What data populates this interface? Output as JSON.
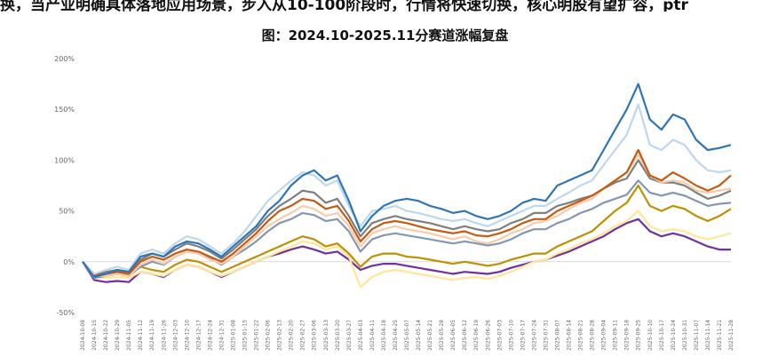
{
  "header": {
    "intro_text": "换，当产业明确具体落地应用场景，步入从10-100阶段时，行情将快速切换，核心明股有望扩容，ptr"
  },
  "chart_data": {
    "type": "line",
    "title": "图：2024.10-2025.11分赛道涨幅复盘",
    "xlabel": "",
    "ylabel": "",
    "ylim": [
      -50,
      200
    ],
    "yticks": [
      -50,
      0,
      50,
      100,
      150,
      200
    ],
    "ytick_labels": [
      "-50%",
      "0%",
      "50%",
      "100%",
      "150%",
      "200%"
    ],
    "grid": false,
    "legend": "bottom",
    "x": [
      "2024-10-08",
      "2024-10-15",
      "2024-10-22",
      "2024-10-29",
      "2024-11-05",
      "2024-11-12",
      "2024-11-19",
      "2024-11-26",
      "2024-12-03",
      "2024-12-10",
      "2024-12-17",
      "2024-12-24",
      "2024-12-31",
      "2025-01-08",
      "2025-01-15",
      "2025-01-22",
      "2025-02-06",
      "2025-02-13",
      "2025-02-20",
      "2025-02-27",
      "2025-03-06",
      "2025-03-13",
      "2025-03-20",
      "2025-03-27",
      "2025-04-03",
      "2025-04-11",
      "2025-04-18",
      "2025-04-25",
      "2025-05-07",
      "2025-05-14",
      "2025-05-21",
      "2025-05-28",
      "2025-06-05",
      "2025-06-12",
      "2025-06-19",
      "2025-06-26",
      "2025-07-03",
      "2025-07-10",
      "2025-07-17",
      "2025-07-24",
      "2025-07-31",
      "2025-08-07",
      "2025-08-14",
      "2025-08-21",
      "2025-08-28",
      "2025-09-04",
      "2025-09-11",
      "2025-09-18",
      "2025-09-25",
      "2025-10-10",
      "2025-10-17",
      "2025-10-24",
      "2025-10-31",
      "2025-11-07",
      "2025-11-14",
      "2025-11-21",
      "2025-11-28"
    ],
    "series": [
      {
        "color": "#2e75b6",
        "values": [
          0,
          -15,
          -12,
          -8,
          -10,
          5,
          8,
          5,
          15,
          20,
          18,
          12,
          5,
          15,
          25,
          35,
          50,
          60,
          75,
          85,
          90,
          80,
          85,
          60,
          30,
          45,
          55,
          60,
          62,
          60,
          55,
          52,
          48,
          50,
          45,
          42,
          45,
          50,
          58,
          62,
          60,
          75,
          80,
          85,
          90,
          110,
          130,
          150,
          175,
          140,
          130,
          145,
          140,
          120,
          110,
          112,
          115
        ]
      },
      {
        "color": "#bdd7ee",
        "values": [
          0,
          -12,
          -8,
          -5,
          -8,
          8,
          12,
          8,
          18,
          25,
          22,
          15,
          8,
          18,
          30,
          45,
          60,
          70,
          80,
          88,
          85,
          75,
          80,
          55,
          35,
          50,
          52,
          55,
          50,
          48,
          45,
          42,
          40,
          42,
          38,
          35,
          40,
          45,
          50,
          55,
          55,
          62,
          68,
          75,
          80,
          95,
          110,
          125,
          155,
          115,
          110,
          120,
          115,
          100,
          90,
          88,
          90
        ]
      },
      {
        "color": "#c55a11",
        "values": [
          0,
          -13,
          -12,
          -10,
          -12,
          0,
          5,
          2,
          8,
          12,
          10,
          5,
          0,
          8,
          18,
          28,
          40,
          50,
          55,
          62,
          60,
          52,
          55,
          40,
          20,
          32,
          38,
          40,
          38,
          35,
          32,
          30,
          28,
          30,
          26,
          25,
          28,
          32,
          38,
          42,
          42,
          50,
          55,
          60,
          65,
          72,
          80,
          88,
          110,
          85,
          80,
          88,
          82,
          75,
          70,
          75,
          85
        ]
      },
      {
        "color": "#f8cbad",
        "values": [
          0,
          -14,
          -14,
          -12,
          -14,
          -3,
          2,
          -2,
          5,
          10,
          8,
          2,
          -2,
          5,
          15,
          25,
          35,
          42,
          48,
          55,
          52,
          45,
          48,
          35,
          15,
          28,
          32,
          35,
          32,
          30,
          28,
          25,
          22,
          25,
          20,
          18,
          22,
          28,
          32,
          38,
          40,
          45,
          52,
          58,
          62,
          72,
          80,
          88,
          105,
          85,
          78,
          80,
          78,
          70,
          68,
          70,
          72
        ]
      },
      {
        "color": "#7f7f7f",
        "values": [
          0,
          -12,
          -10,
          -8,
          -10,
          2,
          8,
          5,
          12,
          18,
          15,
          10,
          3,
          12,
          22,
          32,
          45,
          55,
          62,
          70,
          68,
          58,
          62,
          45,
          25,
          38,
          42,
          45,
          42,
          40,
          38,
          35,
          32,
          35,
          32,
          30,
          32,
          38,
          42,
          48,
          48,
          55,
          58,
          62,
          65,
          72,
          78,
          82,
          100,
          82,
          78,
          78,
          75,
          68,
          62,
          65,
          70
        ]
      },
      {
        "color": "#8497b0",
        "values": [
          0,
          -16,
          -14,
          -12,
          -14,
          -5,
          0,
          -3,
          5,
          10,
          8,
          3,
          -3,
          5,
          12,
          20,
          30,
          38,
          42,
          48,
          46,
          40,
          42,
          30,
          10,
          22,
          26,
          28,
          26,
          24,
          22,
          20,
          18,
          20,
          18,
          16,
          18,
          22,
          28,
          32,
          32,
          38,
          42,
          48,
          52,
          58,
          62,
          66,
          80,
          68,
          65,
          68,
          65,
          60,
          55,
          57,
          58
        ]
      },
      {
        "color": "#bf9000",
        "values": [
          0,
          -15,
          -14,
          -12,
          -13,
          -5,
          -8,
          -10,
          -3,
          2,
          0,
          -5,
          -10,
          -5,
          0,
          5,
          10,
          15,
          20,
          25,
          22,
          15,
          18,
          8,
          -5,
          5,
          8,
          8,
          5,
          4,
          2,
          0,
          -2,
          0,
          -2,
          -4,
          -2,
          2,
          5,
          8,
          8,
          15,
          20,
          25,
          30,
          40,
          50,
          58,
          75,
          55,
          50,
          55,
          52,
          45,
          40,
          45,
          52
        ]
      },
      {
        "color": "#ffe699",
        "values": [
          0,
          -16,
          -16,
          -15,
          -16,
          -10,
          -12,
          -14,
          -8,
          -3,
          -5,
          -10,
          -14,
          -10,
          -5,
          0,
          5,
          10,
          15,
          20,
          18,
          12,
          15,
          5,
          -25,
          -15,
          -10,
          -8,
          -10,
          -12,
          -14,
          -16,
          -18,
          -16,
          -15,
          -17,
          -14,
          -10,
          -5,
          0,
          2,
          8,
          12,
          18,
          22,
          28,
          35,
          40,
          50,
          35,
          30,
          32,
          30,
          25,
          22,
          25,
          28
        ]
      },
      {
        "color": "#7030a0",
        "values": [
          0,
          -18,
          -20,
          -19,
          -20,
          -10,
          -12,
          -15,
          -8,
          -3,
          -5,
          -10,
          -15,
          -10,
          -5,
          0,
          5,
          8,
          12,
          15,
          12,
          8,
          10,
          2,
          -8,
          -4,
          -2,
          -2,
          -4,
          -6,
          -8,
          -10,
          -12,
          -10,
          -11,
          -12,
          -10,
          -6,
          -3,
          0,
          2,
          6,
          10,
          15,
          20,
          25,
          32,
          38,
          42,
          30,
          25,
          28,
          25,
          20,
          15,
          12,
          12
        ]
      }
    ]
  }
}
